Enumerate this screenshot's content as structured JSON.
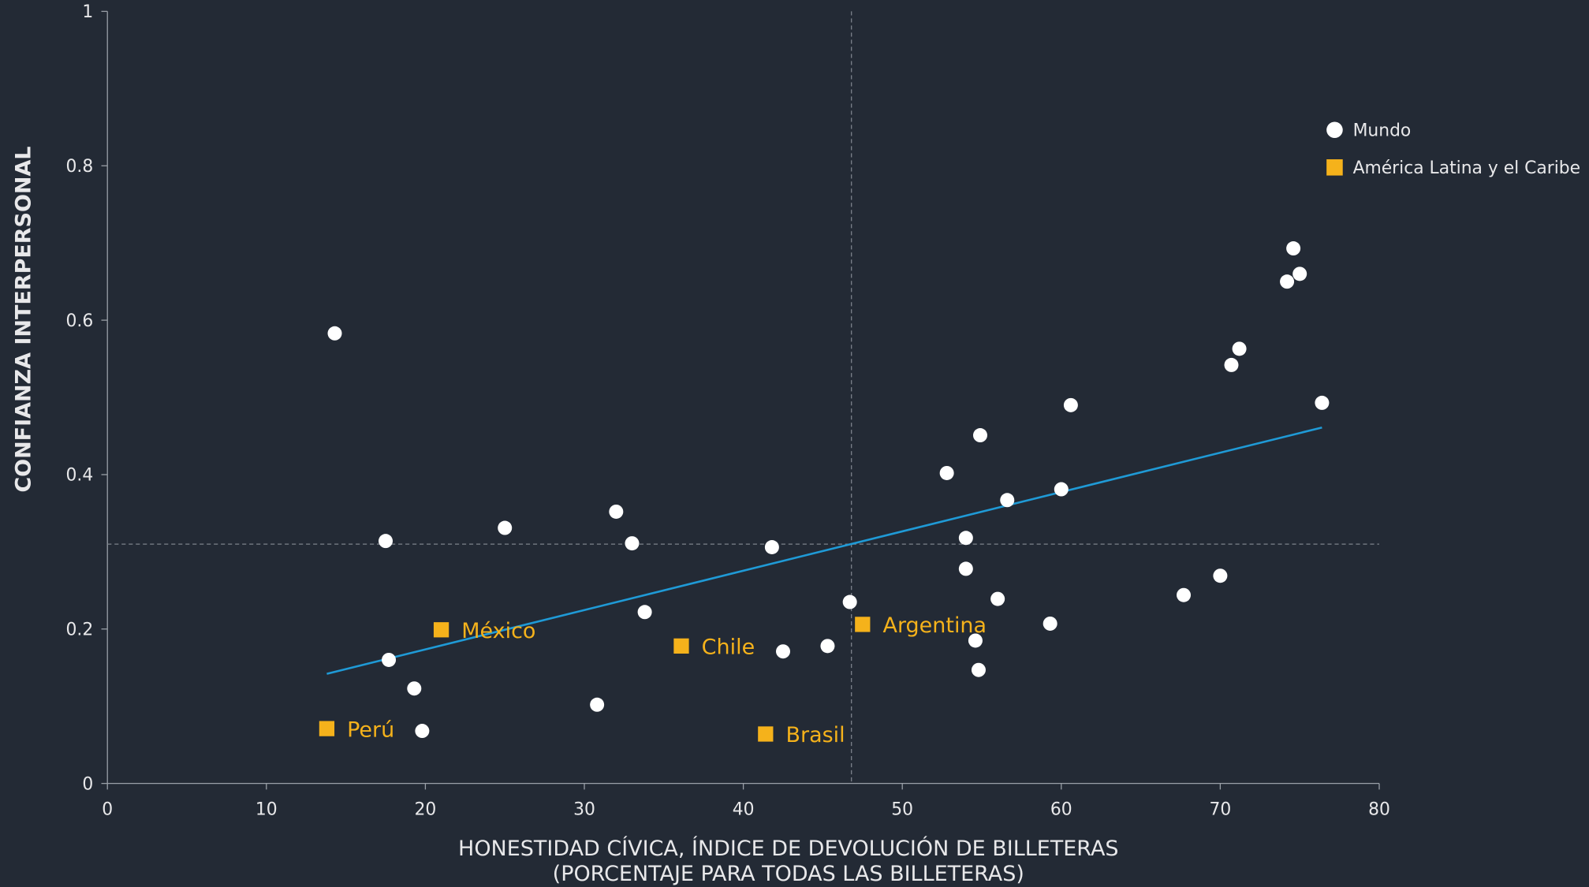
{
  "chart_data": {
    "type": "scatter",
    "xlabel": [
      "HONESTIDAD CÍVICA, ÍNDICE DE DEVOLUCIÓN DE BILLETERAS",
      "(PORCENTAJE PARA TODAS LAS BILLETERAS)"
    ],
    "ylabel": "CONFIANZA INTERPERSONAL",
    "xlim": [
      0,
      80
    ],
    "xticks": [
      0,
      10,
      20,
      30,
      40,
      50,
      60,
      70,
      80
    ],
    "ylim": [
      0,
      1
    ],
    "yticks": [
      0,
      0.2,
      0.4,
      0.6,
      0.8,
      1
    ],
    "legend": "upper right",
    "series": [
      {
        "name": "Mundo",
        "color": "#ffffff",
        "marker": "circle",
        "x": [
          14.3,
          17.5,
          17.7,
          19.3,
          19.8,
          25.0,
          30.8,
          32.0,
          33.0,
          33.8,
          41.8,
          42.5,
          45.3,
          46.7,
          52.8,
          54.0,
          54.0,
          54.6,
          54.8,
          54.9,
          56.0,
          56.6,
          59.3,
          60.0,
          60.6,
          67.7,
          70.0,
          70.7,
          71.2,
          74.2,
          74.6,
          75.0,
          76.4
        ],
        "y": [
          0.583,
          0.314,
          0.16,
          0.123,
          0.068,
          0.331,
          0.102,
          0.352,
          0.311,
          0.222,
          0.306,
          0.171,
          0.178,
          0.235,
          0.402,
          0.318,
          0.278,
          0.185,
          0.147,
          0.451,
          0.239,
          0.367,
          0.207,
          0.381,
          0.49,
          0.244,
          0.269,
          0.542,
          0.563,
          0.65,
          0.693,
          0.66,
          0.493
        ]
      },
      {
        "name": "América Latina y el Caribe",
        "color": "#f5b21b",
        "marker": "square",
        "x": [
          13.8,
          21.0,
          36.1,
          41.4,
          47.5
        ],
        "y": [
          0.071,
          0.199,
          0.178,
          0.064,
          0.206
        ],
        "labels": [
          "Perú",
          "México",
          "Chile",
          "Brasil",
          "Argentina"
        ]
      }
    ],
    "trendline": {
      "x": [
        13.8,
        76.4
      ],
      "y": [
        0.142,
        0.461
      ],
      "color": "#1f9ad6"
    },
    "reference_lines": {
      "x": 46.8,
      "y": 0.31
    }
  }
}
